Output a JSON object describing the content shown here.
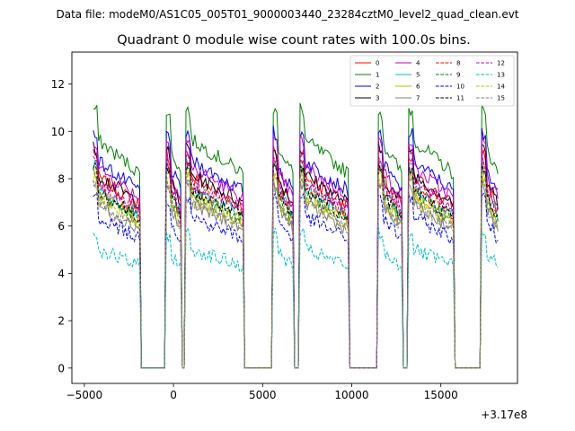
{
  "suptitle": "Data file: modeM0/AS1C05_005T01_9000003440_23284cztM0_level2_quad_clean.evt",
  "chart_data": {
    "type": "line",
    "title": "Quadrant 0 module wise count rates with 100.0s bins.",
    "xlabel": "",
    "ylabel": "",
    "x_offset_label": "+3.17e8",
    "xlim": [
      -5700,
      19300
    ],
    "ylim": [
      -0.65,
      13.35
    ],
    "xticks": [
      -5000,
      0,
      5000,
      10000,
      15000
    ],
    "xtick_labels": [
      "−5000",
      "0",
      "5000",
      "10000",
      "15000"
    ],
    "yticks": [
      0,
      2,
      4,
      6,
      8,
      10,
      12
    ],
    "ytick_labels": [
      "0",
      "2",
      "4",
      "6",
      "8",
      "10",
      "12"
    ],
    "grid": false,
    "legend_position": "top-right",
    "legend_columns": 4,
    "segments": [
      [
        -4500,
        -1900
      ],
      [
        -400,
        400
      ],
      [
        700,
        3900
      ],
      [
        5600,
        6700
      ],
      [
        7100,
        9800
      ],
      [
        11500,
        12800
      ],
      [
        13200,
        15700
      ],
      [
        17300,
        18200
      ]
    ],
    "series": [
      {
        "name": "0",
        "level": 8.2,
        "color": "#ff0000",
        "dash": "solid"
      },
      {
        "name": "1",
        "level": 9.8,
        "color": "#008000",
        "dash": "solid"
      },
      {
        "name": "2",
        "level": 8.9,
        "color": "#0000ff",
        "dash": "solid"
      },
      {
        "name": "3",
        "level": 8.3,
        "color": "#000000",
        "dash": "solid"
      },
      {
        "name": "4",
        "level": 8.6,
        "color": "#c000c0",
        "dash": "solid"
      },
      {
        "name": "5",
        "level": 7.7,
        "color": "#00bfbf",
        "dash": "solid"
      },
      {
        "name": "6",
        "level": 7.4,
        "color": "#bfbf00",
        "dash": "solid"
      },
      {
        "name": "7",
        "level": 7.0,
        "color": "#808080",
        "dash": "solid"
      },
      {
        "name": "8",
        "level": 7.8,
        "color": "#ff0000",
        "dash": "dashed"
      },
      {
        "name": "9",
        "level": 7.5,
        "color": "#008000",
        "dash": "dashed"
      },
      {
        "name": "10",
        "level": 6.5,
        "color": "#0000ff",
        "dash": "dashed"
      },
      {
        "name": "11",
        "level": 7.6,
        "color": "#000000",
        "dash": "dashed"
      },
      {
        "name": "12",
        "level": 8.0,
        "color": "#c000c0",
        "dash": "dashed"
      },
      {
        "name": "13",
        "level": 5.1,
        "color": "#00bfbf",
        "dash": "dashed"
      },
      {
        "name": "14",
        "level": 7.2,
        "color": "#bfbf00",
        "dash": "dashed"
      },
      {
        "name": "15",
        "level": 7.1,
        "color": "#808080",
        "dash": "dashed"
      }
    ]
  }
}
